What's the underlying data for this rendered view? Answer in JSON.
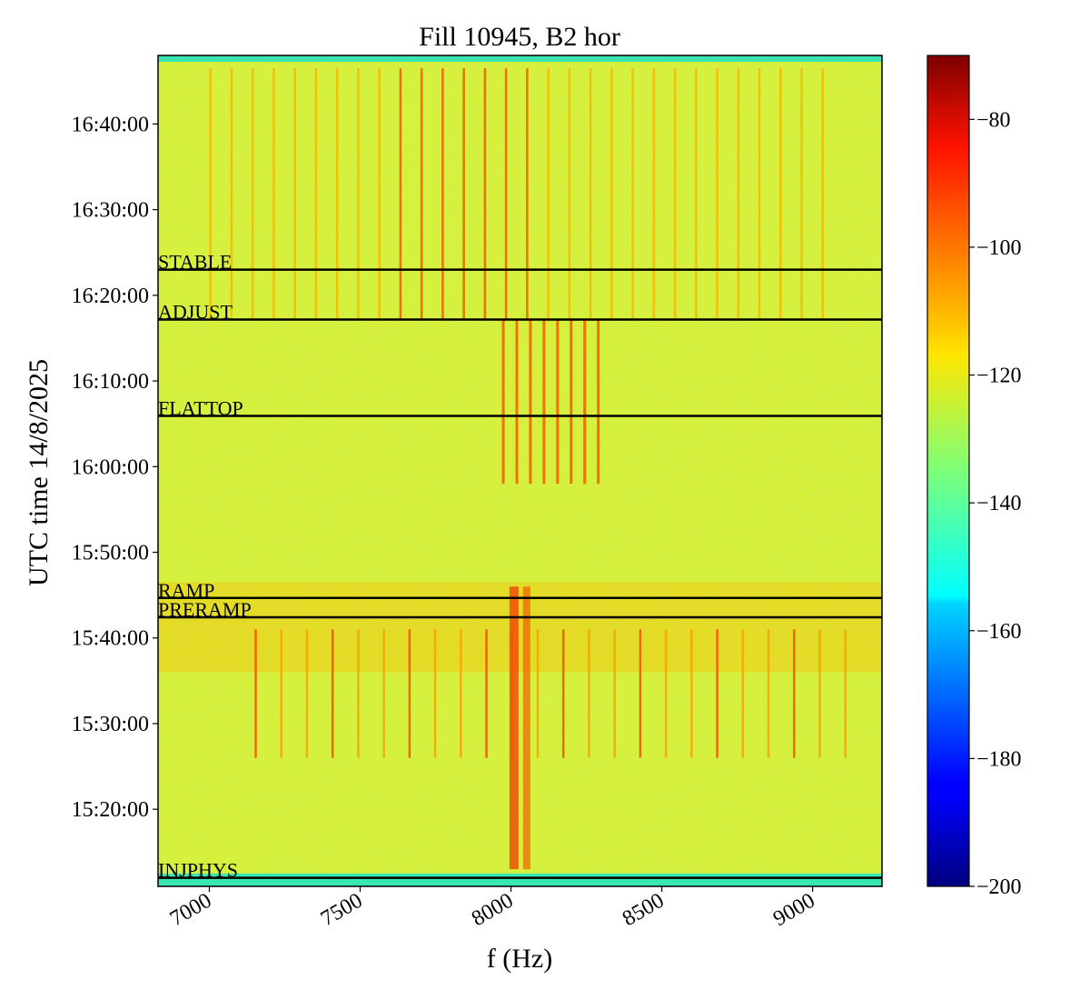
{
  "chart_data": {
    "type": "heatmap",
    "title": "Fill 10945, B2 hor",
    "xlabel": "f (Hz)",
    "ylabel": "UTC time 14/8/2025",
    "xlim": [
      6830,
      9230
    ],
    "ylim_time": [
      "15:11:00",
      "16:48:00"
    ],
    "x_ticks": [
      {
        "value": 7000,
        "label": "7000"
      },
      {
        "value": 7500,
        "label": "7500"
      },
      {
        "value": 8000,
        "label": "8000"
      },
      {
        "value": 8500,
        "label": "8500"
      },
      {
        "value": 9000,
        "label": "9000"
      }
    ],
    "y_ticks": [
      {
        "value": "16:40:00",
        "label": "16:40:00"
      },
      {
        "value": "16:30:00",
        "label": "16:30:00"
      },
      {
        "value": "16:20:00",
        "label": "16:20:00"
      },
      {
        "value": "16:10:00",
        "label": "16:10:00"
      },
      {
        "value": "16:00:00",
        "label": "16:00:00"
      },
      {
        "value": "15:50:00",
        "label": "15:50:00"
      },
      {
        "value": "15:40:00",
        "label": "15:40:00"
      },
      {
        "value": "15:30:00",
        "label": "15:30:00"
      },
      {
        "value": "15:20:00",
        "label": "15:20:00"
      }
    ],
    "phase_markers": [
      {
        "label": "STABLE",
        "time": "16:23:00"
      },
      {
        "label": "ADJUST",
        "time": "16:17:10"
      },
      {
        "label": "FLATTOP",
        "time": "16:05:55"
      },
      {
        "label": "RAMP",
        "time": "15:44:40"
      },
      {
        "label": "PRERAMP",
        "time": "15:42:25"
      },
      {
        "label": "INJPHYS",
        "time": "15:12:00"
      }
    ],
    "colorbar": {
      "colormap": "jet",
      "range": [
        -200,
        -70
      ],
      "ticks": [
        -80,
        -100,
        -120,
        -140,
        -160,
        -180,
        -200
      ],
      "tick_labels": [
        "−80",
        "−100",
        "−120",
        "−140",
        "−160",
        "−180",
        "−200"
      ]
    },
    "background_level": -120,
    "spectral_lines_high_level": -90,
    "grid": false
  }
}
